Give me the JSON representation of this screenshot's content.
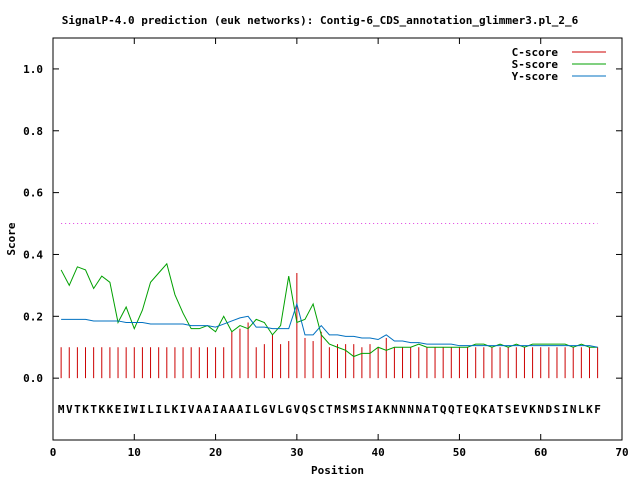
{
  "chart_data": {
    "type": "line",
    "title": "SignalP-4.0 prediction (euk networks): Contig-6_CDS_annotation_glimmer3.pl_2_6",
    "xlabel": "Position",
    "ylabel": "Score",
    "xlim": [
      0,
      70
    ],
    "ylim": [
      -0.2,
      1.1
    ],
    "x_ticks": [
      0,
      10,
      20,
      30,
      40,
      50,
      60,
      70
    ],
    "y_ticks": [
      0.0,
      0.2,
      0.4,
      0.6,
      0.8,
      1.0
    ],
    "x_tick_labels": [
      "0",
      "10",
      "20",
      "30",
      "40",
      "50",
      "60",
      "70"
    ],
    "y_tick_labels": [
      "0.0",
      "0.2",
      "0.4",
      "0.6",
      "0.8",
      "1.0"
    ],
    "threshold": 0.5,
    "sequence": "MVTKTKKEIWILILKIVAAIAAAILGVLGVQSCTMSMSIAKNNNNATQQTEQKATSEVKNDSINLKF",
    "legend_position": "top-right",
    "grid": false,
    "colors": {
      "c_score": "#cc0000",
      "s_score": "#00a000",
      "y_score": "#0070c0",
      "threshold": "#e040e0"
    },
    "series": [
      {
        "name": "C-score",
        "style": "impulses",
        "values": [
          0.1,
          0.1,
          0.1,
          0.1,
          0.1,
          0.1,
          0.1,
          0.1,
          0.1,
          0.1,
          0.1,
          0.1,
          0.1,
          0.1,
          0.1,
          0.1,
          0.1,
          0.1,
          0.1,
          0.1,
          0.1,
          0.15,
          0.16,
          0.18,
          0.1,
          0.11,
          0.14,
          0.11,
          0.12,
          0.34,
          0.13,
          0.12,
          0.15,
          0.1,
          0.11,
          0.11,
          0.11,
          0.1,
          0.11,
          0.1,
          0.13,
          0.1,
          0.1,
          0.1,
          0.1,
          0.1,
          0.1,
          0.1,
          0.1,
          0.1,
          0.1,
          0.1,
          0.1,
          0.1,
          0.1,
          0.1,
          0.1,
          0.1,
          0.1,
          0.1,
          0.1,
          0.1,
          0.1,
          0.1,
          0.1,
          0.1,
          0.1
        ]
      },
      {
        "name": "S-score",
        "style": "line",
        "values": [
          0.35,
          0.3,
          0.36,
          0.35,
          0.29,
          0.33,
          0.31,
          0.18,
          0.23,
          0.16,
          0.22,
          0.31,
          0.34,
          0.37,
          0.27,
          0.21,
          0.16,
          0.16,
          0.17,
          0.15,
          0.2,
          0.15,
          0.17,
          0.16,
          0.19,
          0.18,
          0.14,
          0.17,
          0.33,
          0.18,
          0.19,
          0.24,
          0.14,
          0.11,
          0.1,
          0.09,
          0.07,
          0.08,
          0.08,
          0.1,
          0.09,
          0.1,
          0.1,
          0.1,
          0.11,
          0.1,
          0.1,
          0.1,
          0.1,
          0.1,
          0.1,
          0.11,
          0.11,
          0.1,
          0.11,
          0.1,
          0.11,
          0.1,
          0.11,
          0.11,
          0.11,
          0.11,
          0.11,
          0.1,
          0.11,
          0.1,
          0.1
        ]
      },
      {
        "name": "Y-score",
        "style": "line",
        "values": [
          0.19,
          0.19,
          0.19,
          0.19,
          0.185,
          0.185,
          0.185,
          0.185,
          0.18,
          0.18,
          0.18,
          0.175,
          0.175,
          0.175,
          0.175,
          0.175,
          0.17,
          0.17,
          0.17,
          0.165,
          0.175,
          0.185,
          0.195,
          0.2,
          0.165,
          0.165,
          0.16,
          0.16,
          0.16,
          0.24,
          0.14,
          0.14,
          0.17,
          0.14,
          0.14,
          0.135,
          0.135,
          0.13,
          0.13,
          0.125,
          0.14,
          0.12,
          0.12,
          0.115,
          0.115,
          0.11,
          0.11,
          0.11,
          0.11,
          0.105,
          0.105,
          0.105,
          0.105,
          0.105,
          0.105,
          0.105,
          0.105,
          0.105,
          0.105,
          0.105,
          0.105,
          0.105,
          0.105,
          0.105,
          0.105,
          0.105,
          0.1
        ]
      }
    ]
  }
}
